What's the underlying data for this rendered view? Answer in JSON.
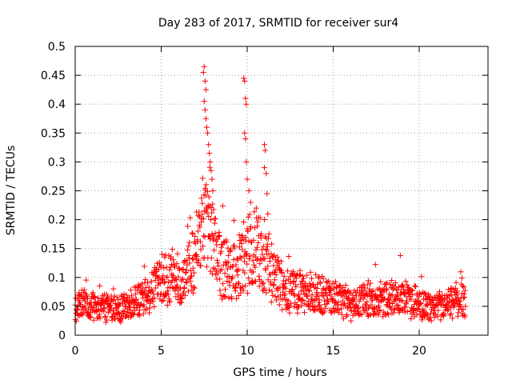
{
  "chart_data": {
    "type": "scatter",
    "title": "Day 283 of 2017, SRMTID for receiver sur4",
    "xlabel": "GPS time / hours",
    "ylabel": "SRMTID / TECUs",
    "xlim": [
      0,
      24
    ],
    "ylim": [
      0,
      0.5
    ],
    "xticks": [
      0,
      5,
      10,
      15,
      20
    ],
    "yticks": [
      0,
      0.05,
      0.1,
      0.15,
      0.2,
      0.25,
      0.3,
      0.35,
      0.4,
      0.45,
      0.5
    ],
    "ytick_labels": [
      "0",
      "0.05",
      "0.1",
      "0.15",
      "0.2",
      "0.25",
      "0.3",
      "0.35",
      "0.4",
      "0.45",
      "0.5"
    ],
    "grid": true,
    "marker": "+",
    "marker_color": "#ff0000",
    "time_range": [
      0.0,
      22.7
    ],
    "series": [
      {
        "name": "SRMTID",
        "baseline_profile": [
          [
            0.0,
            0.05
          ],
          [
            1.0,
            0.052
          ],
          [
            2.0,
            0.045
          ],
          [
            3.0,
            0.048
          ],
          [
            3.5,
            0.058
          ],
          [
            4.0,
            0.065
          ],
          [
            4.5,
            0.075
          ],
          [
            5.0,
            0.095
          ],
          [
            5.5,
            0.1
          ],
          [
            6.0,
            0.085
          ],
          [
            6.5,
            0.1
          ],
          [
            7.0,
            0.14
          ],
          [
            7.5,
            0.2
          ],
          [
            8.0,
            0.16
          ],
          [
            8.5,
            0.12
          ],
          [
            9.0,
            0.11
          ],
          [
            9.5,
            0.12
          ],
          [
            10.0,
            0.14
          ],
          [
            10.5,
            0.15
          ],
          [
            11.0,
            0.14
          ],
          [
            11.5,
            0.1
          ],
          [
            12.0,
            0.09
          ],
          [
            12.5,
            0.08
          ],
          [
            13.0,
            0.075
          ],
          [
            14.0,
            0.07
          ],
          [
            15.0,
            0.065
          ],
          [
            16.0,
            0.055
          ],
          [
            17.0,
            0.06
          ],
          [
            18.0,
            0.062
          ],
          [
            19.0,
            0.065
          ],
          [
            20.0,
            0.055
          ],
          [
            21.0,
            0.045
          ],
          [
            22.0,
            0.055
          ],
          [
            22.7,
            0.065
          ]
        ],
        "peaks": [
          [
            7.5,
            0.465
          ],
          [
            7.45,
            0.455
          ],
          [
            7.55,
            0.44
          ],
          [
            7.6,
            0.425
          ],
          [
            7.5,
            0.405
          ],
          [
            7.55,
            0.39
          ],
          [
            7.6,
            0.375
          ],
          [
            7.65,
            0.36
          ],
          [
            7.7,
            0.35
          ],
          [
            7.75,
            0.33
          ],
          [
            7.8,
            0.315
          ],
          [
            7.85,
            0.3
          ],
          [
            7.9,
            0.285
          ],
          [
            7.95,
            0.27
          ],
          [
            8.0,
            0.25
          ],
          [
            9.8,
            0.445
          ],
          [
            9.85,
            0.44
          ],
          [
            9.9,
            0.41
          ],
          [
            9.95,
            0.4
          ],
          [
            9.85,
            0.35
          ],
          [
            9.9,
            0.34
          ],
          [
            9.95,
            0.3
          ],
          [
            10.0,
            0.27
          ],
          [
            10.1,
            0.25
          ],
          [
            10.2,
            0.23
          ],
          [
            11.0,
            0.33
          ],
          [
            11.05,
            0.32
          ],
          [
            11.0,
            0.29
          ],
          [
            11.1,
            0.28
          ],
          [
            11.15,
            0.245
          ],
          [
            11.2,
            0.21
          ],
          [
            18.9,
            0.138
          ]
        ]
      }
    ]
  }
}
